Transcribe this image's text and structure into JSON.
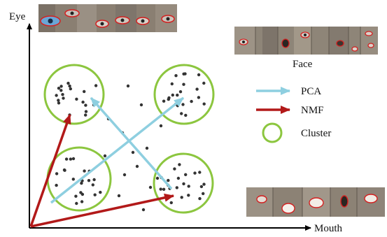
{
  "axes": {
    "y_label": "Eye",
    "x_label": "Mouth"
  },
  "panels": {
    "face_label": "Face"
  },
  "legend": [
    {
      "key": "pca",
      "label": "PCA",
      "color": "#8ecfe0",
      "kind": "arrow"
    },
    {
      "key": "nmf",
      "label": "NMF",
      "color": "#b21919",
      "kind": "arrow"
    },
    {
      "key": "cluster",
      "label": "Cluster",
      "color": "#8cc63f",
      "kind": "circle"
    }
  ],
  "colors": {
    "axis": "#000000",
    "point": "#333333",
    "strip_background": "#8a7f72",
    "contour": "#d42020"
  },
  "clusters": 4,
  "icons": [
    "eye-patch-strip",
    "face-patch-strip",
    "mouth-patch-strip"
  ]
}
